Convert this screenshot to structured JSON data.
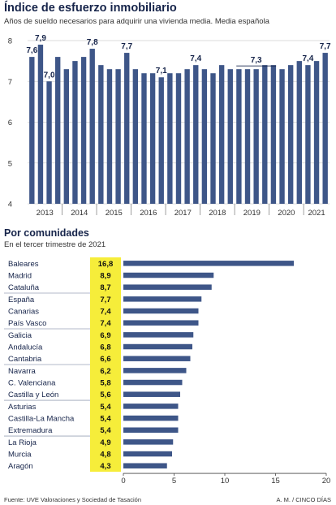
{
  "header": {
    "title": "Índice de esfuerzo inmobiliario",
    "subtitle": "Años de sueldo necesarios para adquirir una vivienda media. Media española"
  },
  "section2": {
    "title": "Por comunidades",
    "subtitle": "En el tercer trimestre de 2021"
  },
  "footer": {
    "source": "Fuente: UVE Valoraciones y Sociedad de Tasación",
    "credit": "A. M. / CINCO DÍAS"
  },
  "colors": {
    "bar": "#3e5688",
    "highlight": "#f6ed3a",
    "grid": "#cfcfcf",
    "text": "#16244a"
  },
  "chart_data": [
    {
      "type": "bar",
      "ylim": [
        4,
        8
      ],
      "yticks": [
        4,
        5,
        6,
        7,
        8
      ],
      "grid": true,
      "year_labels": [
        "2013",
        "2014",
        "2015",
        "2016",
        "2017",
        "2018",
        "2019",
        "2020",
        "2021"
      ],
      "quarters_per_year": 4,
      "values": [
        7.6,
        7.9,
        7.0,
        7.6,
        7.3,
        7.5,
        7.6,
        7.8,
        7.4,
        7.3,
        7.3,
        7.7,
        7.3,
        7.2,
        7.2,
        7.1,
        7.2,
        7.2,
        7.3,
        7.4,
        7.3,
        7.2,
        7.4,
        7.3,
        7.3,
        7.3,
        7.3,
        7.4,
        7.4,
        7.3,
        7.4,
        7.5,
        7.4,
        7.5,
        7.7
      ],
      "data_labels": [
        {
          "index": 0,
          "text": "7,6"
        },
        {
          "index": 1,
          "text": "7,9"
        },
        {
          "index": 2,
          "text": "7,0"
        },
        {
          "index": 7,
          "text": "7,8"
        },
        {
          "index": 11,
          "text": "7,7"
        },
        {
          "index": 15,
          "text": "7,1"
        },
        {
          "index": 19,
          "text": "7,4"
        },
        {
          "index": 26,
          "text": "7,3",
          "bracket": [
            24,
            28
          ]
        },
        {
          "index": 32,
          "text": "7,4"
        },
        {
          "index": 34,
          "text": "7,7"
        }
      ]
    },
    {
      "type": "bar",
      "orientation": "horizontal",
      "xlim": [
        0,
        20
      ],
      "xticks": [
        0,
        5,
        10,
        15,
        20
      ],
      "grid": false,
      "categories": [
        "Baleares",
        "Madrid",
        "Cataluña",
        "España",
        "Canarias",
        "País Vasco",
        "Galicia",
        "Andalucía",
        "Cantabria",
        "Navarra",
        "C. Valenciana",
        "Castilla y León",
        "Asturias",
        "Castilla-La Mancha",
        "Extremadura",
        "La Rioja",
        "Murcia",
        "Aragón"
      ],
      "values": [
        16.8,
        8.9,
        8.7,
        7.7,
        7.4,
        7.4,
        6.9,
        6.8,
        6.6,
        6.2,
        5.8,
        5.6,
        5.4,
        5.4,
        5.4,
        4.9,
        4.8,
        4.3
      ],
      "value_labels": [
        "16,8",
        "8,9",
        "8,7",
        "7,7",
        "7,4",
        "7,4",
        "6,9",
        "6,8",
        "6,6",
        "6,2",
        "5,8",
        "5,6",
        "5,4",
        "5,4",
        "5,4",
        "4,9",
        "4,8",
        "4,3"
      ]
    }
  ]
}
